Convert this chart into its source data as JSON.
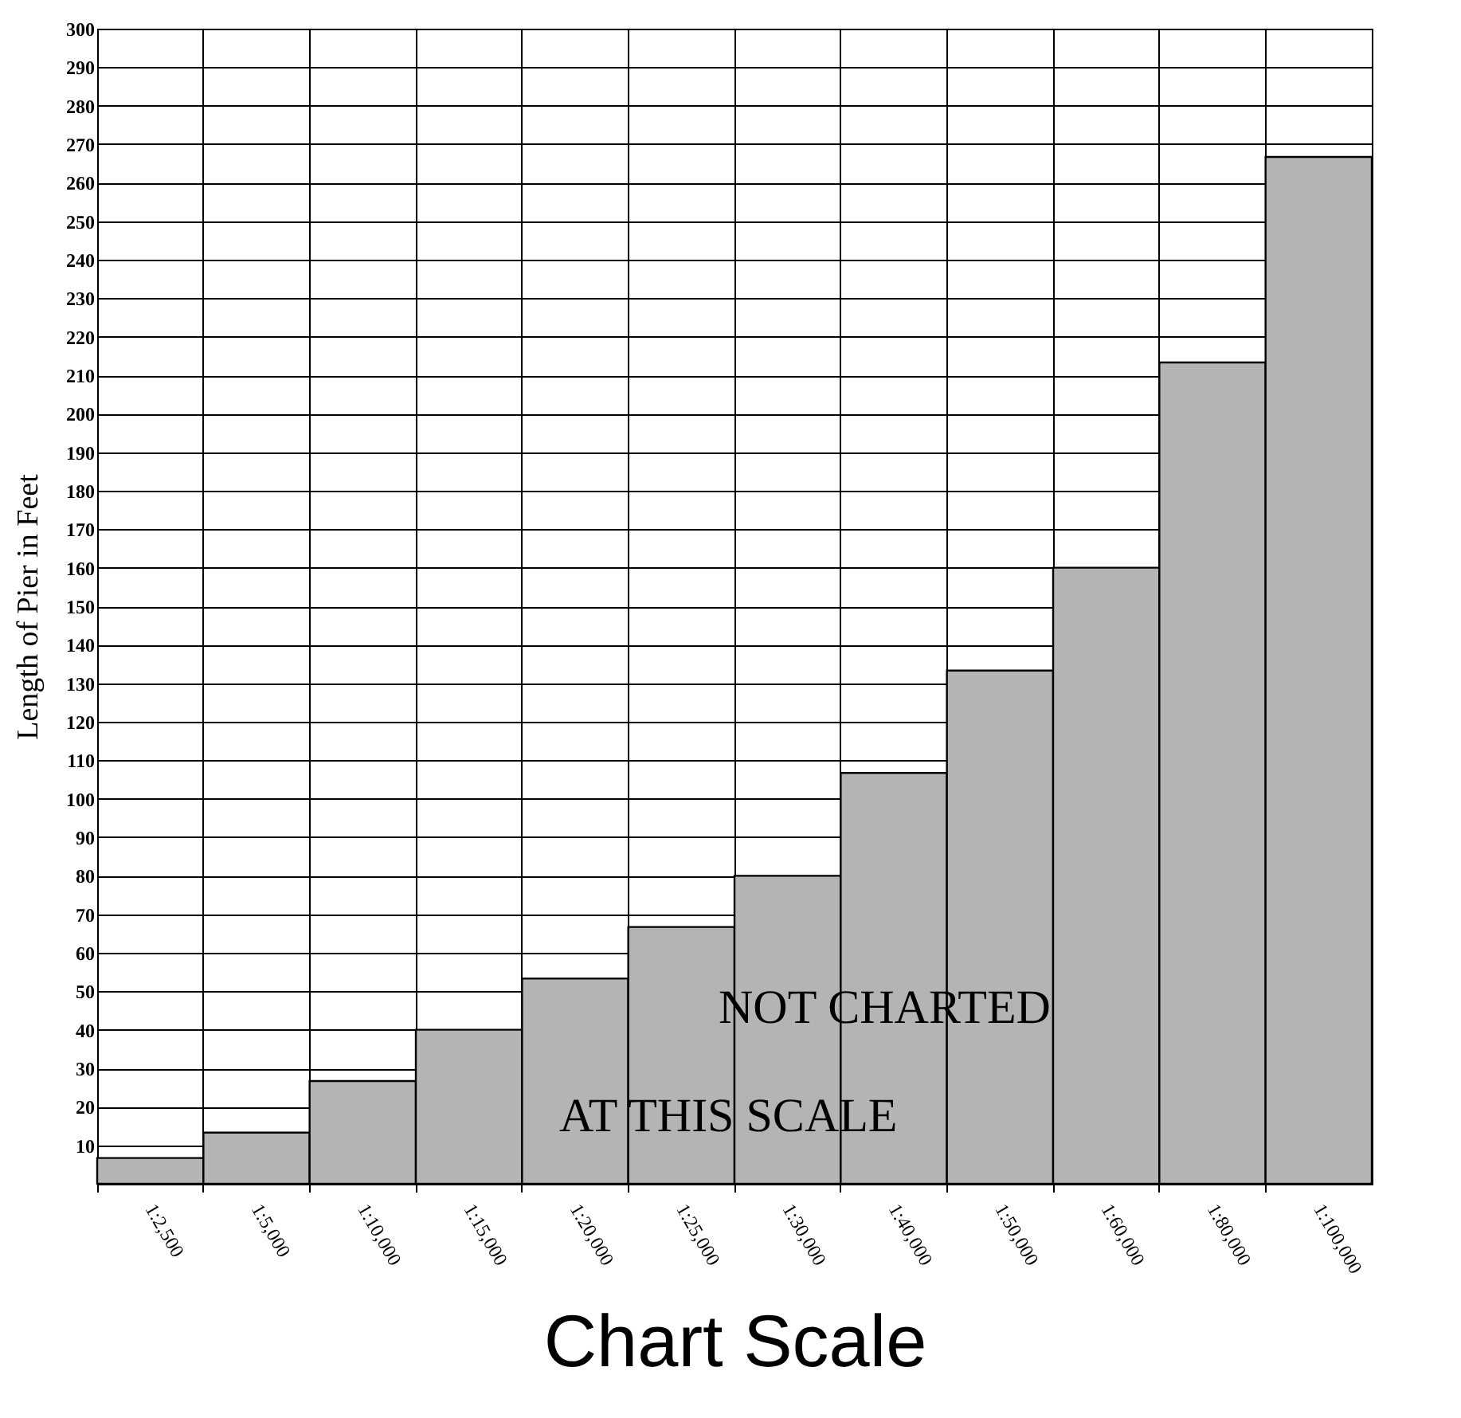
{
  "chart_data": {
    "type": "bar",
    "xlabel": "Chart Scale",
    "ylabel": "Length of Pier in Feet",
    "categories": [
      "1:2,500",
      "1:5,000",
      "1:10,000",
      "1:15,000",
      "1:20,000",
      "1:25,000",
      "1:30,000",
      "1:40,000",
      "1:50,000",
      "1:60,000",
      "1:80,000",
      "1:100,000"
    ],
    "values": [
      6.7,
      13.3,
      26.7,
      40,
      53.3,
      66.7,
      80,
      106.7,
      133.3,
      160,
      213.3,
      266.7
    ],
    "color": "#b4b4b4",
    "ylim": [
      0,
      300
    ],
    "yticks": [
      10,
      20,
      30,
      40,
      50,
      60,
      70,
      80,
      90,
      100,
      110,
      120,
      130,
      140,
      150,
      160,
      170,
      180,
      190,
      200,
      210,
      220,
      230,
      240,
      250,
      260,
      270,
      280,
      290,
      300
    ],
    "grid": true,
    "annotations": [
      "NOT CHARTED",
      "AT THIS SCALE"
    ]
  }
}
